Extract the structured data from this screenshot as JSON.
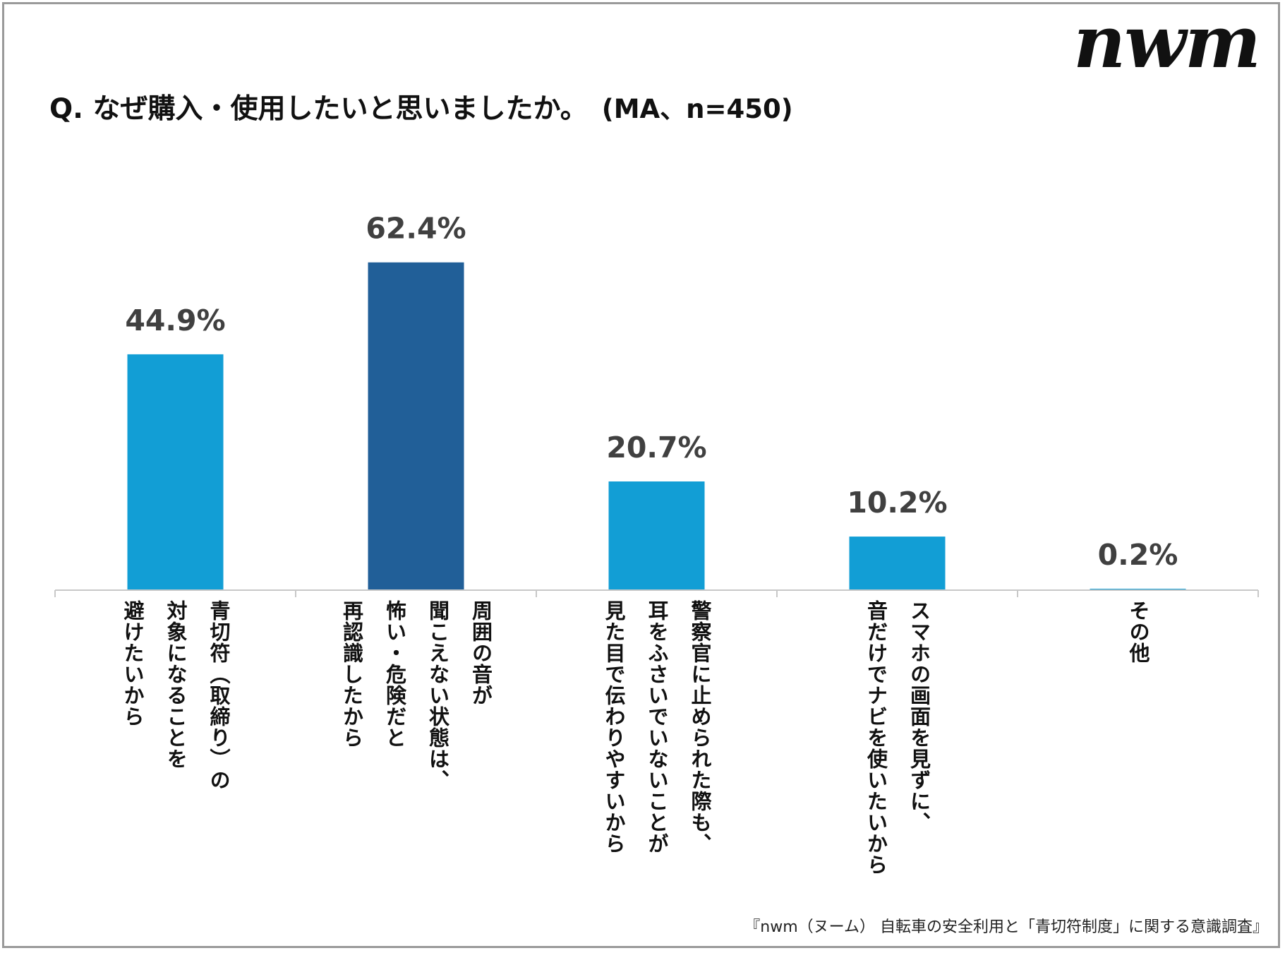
{
  "logo": "nwm",
  "header": {
    "title": "Q. なぜ購入・使用したいと思いましたか。",
    "meta": "(MA、n=450)"
  },
  "colors": {
    "bar": "#129ed5",
    "bar_highlight": "#215f98",
    "axis": "#c8c8c8",
    "value_label": "#404040"
  },
  "chart_data": {
    "type": "bar",
    "title": "Q. なぜ購入・使用したいと思いましたか。 (MA、n=450)",
    "xlabel": "",
    "ylabel": "",
    "ylim": [
      0,
      70
    ],
    "grid": false,
    "legend": "none",
    "unit": "%",
    "categories": [
      "青切符（取締り）の\n対象になることを\n避けたいから",
      "周囲の音が\n聞こえない状態は、\n怖い・危険だと\n再認識したから",
      "警察官に止められた際も、\n耳をふさいでいないことが\n見た目で伝わりやすいから",
      "スマホの画面を見ずに、\n音だけでナビを使いたいから",
      "その他"
    ],
    "values": [
      44.9,
      62.4,
      20.7,
      10.2,
      0.2
    ],
    "value_labels": [
      "44.9%",
      "62.4%",
      "20.7%",
      "10.2%",
      "0.2%"
    ],
    "highlight_index": 1
  },
  "source": "『nwm（ヌーム） 自転車の安全利用と「青切符制度」に関する意識調査』"
}
